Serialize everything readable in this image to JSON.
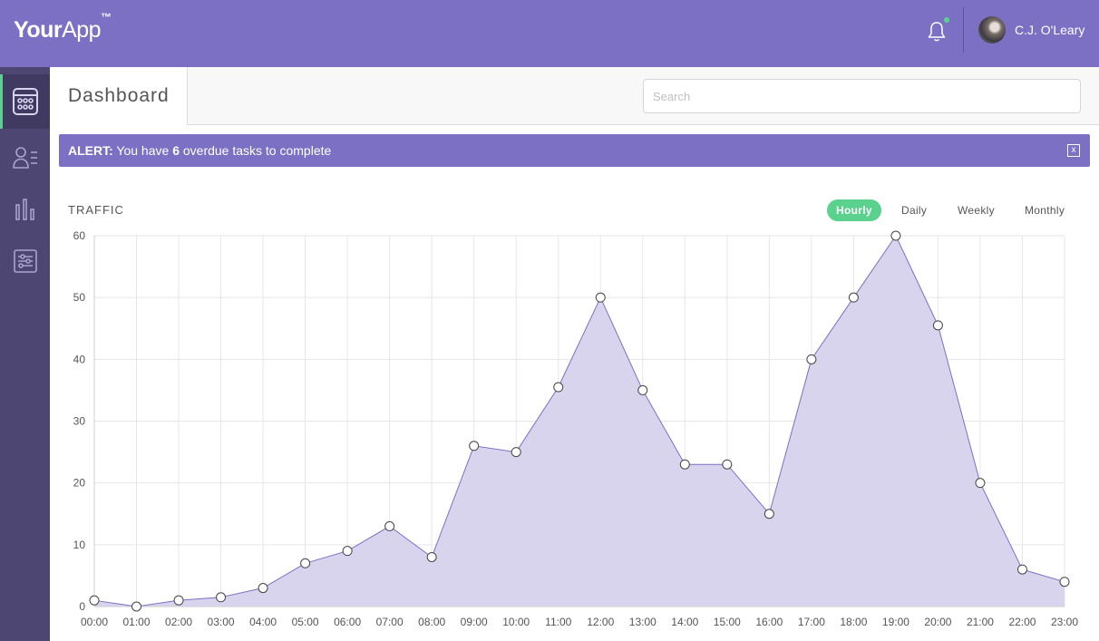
{
  "app": {
    "logo_bold": "Your",
    "logo_light": "App",
    "logo_tm": "™"
  },
  "header": {
    "user_name": "C.J. O'Leary",
    "notification_icon": "bell-icon",
    "notification_dot_color": "#5ad18c"
  },
  "sidebar": {
    "items": [
      {
        "icon": "calendar-grid-icon",
        "active": true
      },
      {
        "icon": "user-list-icon",
        "active": false
      },
      {
        "icon": "bar-chart-icon",
        "active": false
      },
      {
        "icon": "sliders-icon",
        "active": false
      }
    ]
  },
  "page": {
    "title": "Dashboard",
    "search_placeholder": "Search"
  },
  "alert": {
    "label": "ALERT:",
    "text_before": " You have ",
    "count": "6",
    "text_after": " overdue tasks to complete",
    "close_label": "x"
  },
  "traffic": {
    "title": "TRAFFIC",
    "ranges": [
      "Hourly",
      "Daily",
      "Weekly",
      "Monthly"
    ],
    "active_range": "Hourly"
  },
  "colors": {
    "brand": "#7b70c4",
    "sidebar": "#4d4673",
    "accent": "#5ad18c",
    "area_fill": "#d8d4ee"
  },
  "chart_data": {
    "type": "area",
    "title": "TRAFFIC",
    "categories": [
      "00:00",
      "01:00",
      "02:00",
      "03:00",
      "04:00",
      "05:00",
      "06:00",
      "07:00",
      "08:00",
      "09:00",
      "10:00",
      "11:00",
      "12:00",
      "13:00",
      "14:00",
      "15:00",
      "16:00",
      "17:00",
      "18:00",
      "19:00",
      "20:00",
      "21:00",
      "22:00",
      "23:00"
    ],
    "values": [
      1,
      0,
      1,
      1.5,
      3,
      7,
      9,
      13,
      8,
      26,
      25,
      35.5,
      50,
      35,
      23,
      23,
      15,
      40,
      50,
      60,
      45.5,
      20,
      6,
      4
    ],
    "ylim": [
      0,
      60
    ],
    "yticks": [
      0,
      10,
      20,
      30,
      40,
      50,
      60
    ],
    "grid": true,
    "legend": "none"
  }
}
